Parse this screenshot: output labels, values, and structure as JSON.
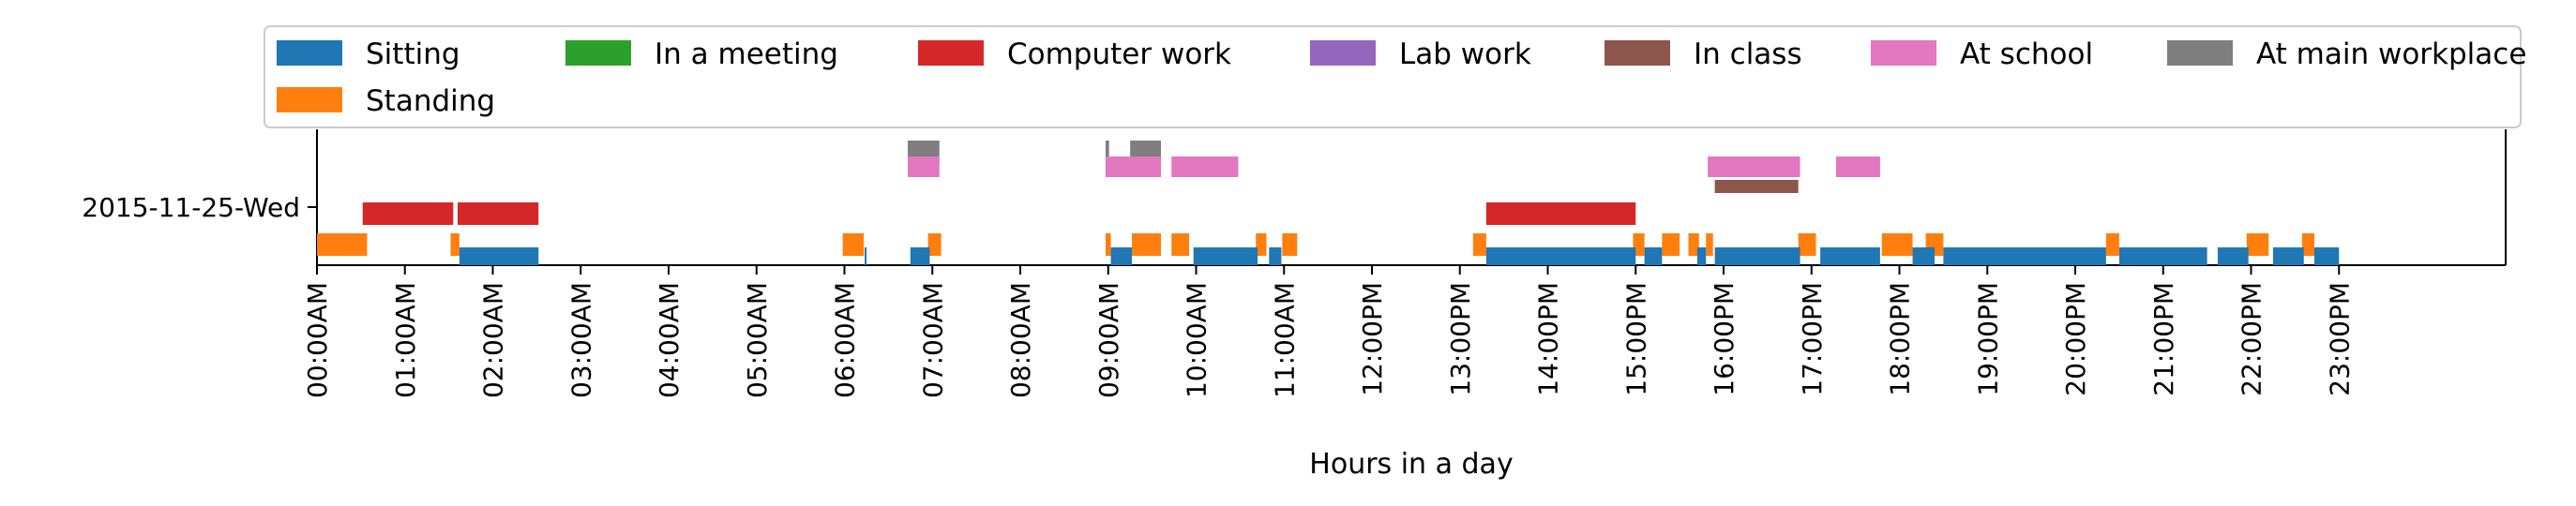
{
  "chart_data": {
    "type": "timeline",
    "title": "",
    "xlabel": "Hours in a day",
    "ylabel": "",
    "xlim": [
      0,
      24
    ],
    "row_label": "2015-11-25-Wed",
    "x_ticks": [
      {
        "hour": 0,
        "label": "00:00AM"
      },
      {
        "hour": 1,
        "label": "01:00AM"
      },
      {
        "hour": 2,
        "label": "02:00AM"
      },
      {
        "hour": 3,
        "label": "03:00AM"
      },
      {
        "hour": 4,
        "label": "04:00AM"
      },
      {
        "hour": 5,
        "label": "05:00AM"
      },
      {
        "hour": 6,
        "label": "06:00AM"
      },
      {
        "hour": 7,
        "label": "07:00AM"
      },
      {
        "hour": 8,
        "label": "08:00AM"
      },
      {
        "hour": 9,
        "label": "09:00AM"
      },
      {
        "hour": 10,
        "label": "10:00AM"
      },
      {
        "hour": 11,
        "label": "11:00AM"
      },
      {
        "hour": 12,
        "label": "12:00PM"
      },
      {
        "hour": 13,
        "label": "13:00PM"
      },
      {
        "hour": 14,
        "label": "14:00PM"
      },
      {
        "hour": 15,
        "label": "15:00PM"
      },
      {
        "hour": 16,
        "label": "16:00PM"
      },
      {
        "hour": 17,
        "label": "17:00PM"
      },
      {
        "hour": 18,
        "label": "18:00PM"
      },
      {
        "hour": 19,
        "label": "19:00PM"
      },
      {
        "hour": 20,
        "label": "20:00PM"
      },
      {
        "hour": 21,
        "label": "21:00PM"
      },
      {
        "hour": 22,
        "label": "22:00PM"
      },
      {
        "hour": 23,
        "label": "23:00PM"
      }
    ],
    "legend_position": "top",
    "series": [
      {
        "name": "Sitting",
        "color": "#1f77b4",
        "intervals": [
          [
            1.62,
            2.52
          ],
          [
            6.23,
            6.25
          ],
          [
            6.75,
            6.97
          ],
          [
            9.03,
            9.27
          ],
          [
            9.97,
            10.7
          ],
          [
            10.83,
            10.97
          ],
          [
            13.3,
            15.0
          ],
          [
            15.1,
            15.3
          ],
          [
            15.7,
            15.8
          ],
          [
            15.9,
            16.87
          ],
          [
            17.1,
            17.78
          ],
          [
            18.15,
            18.4
          ],
          [
            18.5,
            20.35
          ],
          [
            20.5,
            21.5
          ],
          [
            21.62,
            21.97
          ],
          [
            22.25,
            22.6
          ],
          [
            22.72,
            23.0
          ]
        ]
      },
      {
        "name": "Standing",
        "color": "#ff7f0e",
        "intervals": [
          [
            0.0,
            0.57
          ],
          [
            1.52,
            1.62
          ],
          [
            5.98,
            6.22
          ],
          [
            6.95,
            7.1
          ],
          [
            8.97,
            9.03
          ],
          [
            9.27,
            9.6
          ],
          [
            9.72,
            9.92
          ],
          [
            10.68,
            10.8
          ],
          [
            10.98,
            11.15
          ],
          [
            13.15,
            13.3
          ],
          [
            14.97,
            15.1
          ],
          [
            15.3,
            15.5
          ],
          [
            15.6,
            15.72
          ],
          [
            15.8,
            15.88
          ],
          [
            16.85,
            17.05
          ],
          [
            17.8,
            18.15
          ],
          [
            18.3,
            18.5
          ],
          [
            20.35,
            20.5
          ],
          [
            21.95,
            22.2
          ],
          [
            22.58,
            22.72
          ]
        ]
      },
      {
        "name": "In a meeting",
        "color": "#2ca02c",
        "intervals": []
      },
      {
        "name": "Computer work",
        "color": "#d62728",
        "intervals": [
          [
            0.52,
            1.55
          ],
          [
            1.6,
            2.52
          ],
          [
            13.3,
            15.0
          ]
        ]
      },
      {
        "name": "Lab work",
        "color": "#9467bd",
        "intervals": []
      },
      {
        "name": "In class",
        "color": "#8c564b",
        "intervals": [
          [
            15.9,
            16.85
          ]
        ]
      },
      {
        "name": "At school",
        "color": "#e377c2",
        "intervals": [
          [
            6.72,
            7.08
          ],
          [
            8.97,
            9.6
          ],
          [
            9.72,
            10.48
          ],
          [
            15.82,
            16.87
          ],
          [
            17.28,
            17.78
          ]
        ]
      },
      {
        "name": "At main workplace",
        "color": "#7f7f7f",
        "intervals": [
          [
            6.72,
            7.08
          ],
          [
            8.97,
            9.01
          ],
          [
            9.25,
            9.6
          ]
        ]
      }
    ]
  }
}
